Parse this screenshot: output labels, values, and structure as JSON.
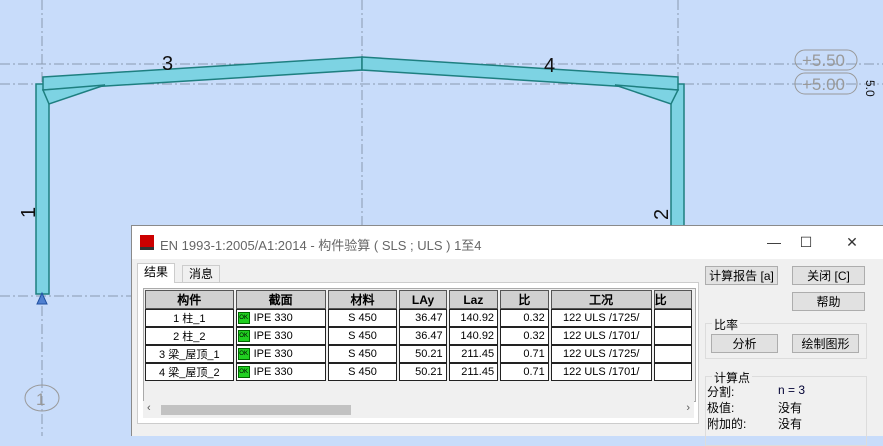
{
  "canvas": {
    "member_labels": [
      "1",
      "2",
      "3",
      "4"
    ],
    "levels": [
      "+5.50",
      "+5.00"
    ],
    "dimension": "5.0",
    "axis_bubble": "1",
    "colors": {
      "background": "#c8dcfa",
      "member_fill": "#7dd3e3",
      "member_edge": "#1e7f80"
    }
  },
  "dialog": {
    "title": "EN 1993-1:2005/A1:2014 - 构件验算 ( SLS ; ULS ) 1至4",
    "tabs": [
      {
        "label": "结果",
        "active": true
      },
      {
        "label": "消息",
        "active": false
      }
    ],
    "columns": [
      "构件",
      "截面",
      "材料",
      "LAy",
      "Laz",
      "比",
      "工况",
      "比"
    ],
    "rows": [
      {
        "member": "1  柱_1",
        "status": "OK",
        "section": "IPE 330",
        "material": "S 450",
        "lay": "36.47",
        "laz": "140.92",
        "ratio": "0.32",
        "case": "122 ULS /1725/"
      },
      {
        "member": "2  柱_2",
        "status": "OK",
        "section": "IPE 330",
        "material": "S 450",
        "lay": "36.47",
        "laz": "140.92",
        "ratio": "0.32",
        "case": "122 ULS /1701/"
      },
      {
        "member": "3  梁_屋顶_1",
        "status": "OK",
        "section": "IPE 330",
        "material": "S 450",
        "lay": "50.21",
        "laz": "211.45",
        "ratio": "0.71",
        "case": "122 ULS /1725/"
      },
      {
        "member": "4  梁_屋顶_2",
        "status": "OK",
        "section": "IPE 330",
        "material": "S 450",
        "lay": "50.21",
        "laz": "211.45",
        "ratio": "0.71",
        "case": "122 ULS /1701/"
      }
    ],
    "buttons": {
      "report": "计算报告 [a]",
      "close": "关闭 [C]",
      "help": "帮助",
      "analysis": "分析",
      "draw": "绘制图形"
    },
    "ratio_group": "比率",
    "calc_points": {
      "title": "计算点",
      "division_label": "分割:",
      "division_value": "n = 3",
      "extreme_label": "极值:",
      "extreme_value": "没有",
      "additional_label": "附加的:",
      "additional_value": "没有"
    }
  }
}
